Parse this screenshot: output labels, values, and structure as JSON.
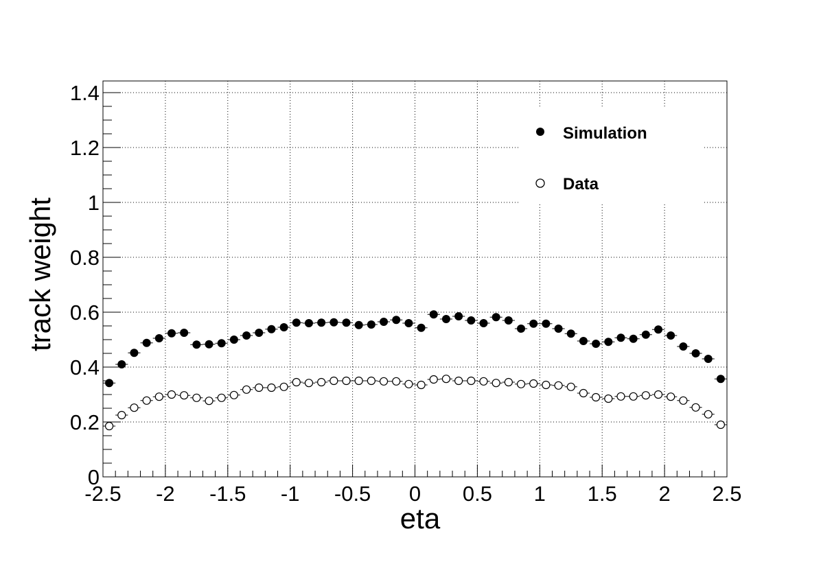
{
  "chart_data": {
    "type": "scatter",
    "xlabel": "eta",
    "ylabel": "track weight",
    "xlim": [
      -2.5,
      2.5
    ],
    "ylim": [
      0,
      1.45
    ],
    "grid": true,
    "legend_position": "top-right",
    "x_ticks": [
      -2.5,
      -2,
      -1.5,
      -1,
      -0.5,
      0,
      0.5,
      1,
      1.5,
      2,
      2.5
    ],
    "x_tick_labels": [
      "-2.5",
      "-2",
      "-1.5",
      "-1",
      "-0.5",
      "0",
      "0.5",
      "1",
      "1.5",
      "2",
      "2.5"
    ],
    "y_ticks": [
      0,
      0.2,
      0.4,
      0.6,
      0.8,
      1,
      1.2,
      1.4
    ],
    "y_tick_labels": [
      "0",
      "0.2",
      "0.4",
      "0.6",
      "0.8",
      "1",
      "1.2",
      "1.4"
    ],
    "x": [
      -2.45,
      -2.35,
      -2.25,
      -2.15,
      -2.05,
      -1.95,
      -1.85,
      -1.75,
      -1.65,
      -1.55,
      -1.45,
      -1.35,
      -1.25,
      -1.15,
      -1.05,
      -0.95,
      -0.85,
      -0.75,
      -0.65,
      -0.55,
      -0.45,
      -0.35,
      -0.25,
      -0.15,
      -0.05,
      0.05,
      0.15,
      0.25,
      0.35,
      0.45,
      0.55,
      0.65,
      0.75,
      0.85,
      0.95,
      1.05,
      1.15,
      1.25,
      1.35,
      1.45,
      1.55,
      1.65,
      1.75,
      1.85,
      1.95,
      2.05,
      2.15,
      2.25,
      2.35,
      2.45
    ],
    "series": [
      {
        "name": "Simulation",
        "marker": "filled-circle",
        "color": "#000000",
        "values": [
          0.342,
          0.41,
          0.452,
          0.488,
          0.505,
          0.523,
          0.525,
          0.482,
          0.483,
          0.487,
          0.5,
          0.515,
          0.525,
          0.538,
          0.545,
          0.562,
          0.56,
          0.562,
          0.563,
          0.562,
          0.553,
          0.555,
          0.565,
          0.572,
          0.56,
          0.543,
          0.592,
          0.575,
          0.585,
          0.57,
          0.56,
          0.582,
          0.57,
          0.54,
          0.558,
          0.558,
          0.54,
          0.522,
          0.495,
          0.485,
          0.492,
          0.507,
          0.503,
          0.518,
          0.537,
          0.515,
          0.475,
          0.45,
          0.43,
          0.357
        ]
      },
      {
        "name": "Data",
        "marker": "open-circle",
        "color": "#000000",
        "values": [
          0.185,
          0.225,
          0.252,
          0.278,
          0.292,
          0.3,
          0.297,
          0.288,
          0.277,
          0.288,
          0.298,
          0.318,
          0.325,
          0.325,
          0.328,
          0.345,
          0.342,
          0.345,
          0.35,
          0.35,
          0.35,
          0.35,
          0.348,
          0.348,
          0.338,
          0.335,
          0.355,
          0.357,
          0.35,
          0.35,
          0.348,
          0.342,
          0.345,
          0.338,
          0.34,
          0.335,
          0.333,
          0.328,
          0.305,
          0.29,
          0.285,
          0.293,
          0.293,
          0.297,
          0.3,
          0.292,
          0.278,
          0.253,
          0.228,
          0.19
        ]
      }
    ]
  }
}
